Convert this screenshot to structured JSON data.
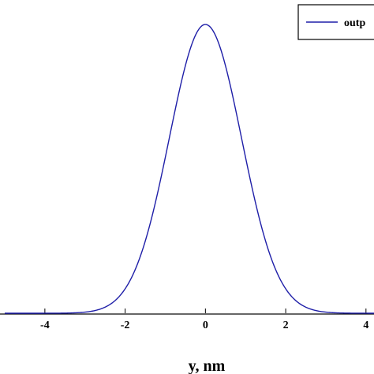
{
  "chart_data": {
    "type": "line",
    "title": "",
    "xlabel": "y, nm",
    "ylabel": "",
    "xlim": [
      -5,
      4.2
    ],
    "ylim": [
      0,
      1.05
    ],
    "x_ticks": [
      -4,
      -2,
      0,
      2,
      4
    ],
    "x_tick_labels": [
      "-4",
      "-2",
      "0",
      "2",
      "4"
    ],
    "grid": false,
    "legend": {
      "placement": "top-right",
      "entries": [
        "outp"
      ]
    },
    "series": [
      {
        "name": "outp",
        "color": "#1f1fa8",
        "x": [
          -5,
          -4,
          -3.5,
          -3,
          -2.75,
          -2.5,
          -2.25,
          -2,
          -1.75,
          -1.5,
          -1.25,
          -1,
          -0.75,
          -0.5,
          -0.25,
          0,
          0.25,
          0.5,
          0.75,
          1,
          1.25,
          1.5,
          1.75,
          2,
          2.25,
          2.5,
          2.75,
          3,
          3.5,
          4,
          4.2
        ],
        "y": [
          0,
          0.0001,
          0.0007,
          0.0039,
          0.0087,
          0.0183,
          0.0362,
          0.0668,
          0.1164,
          0.1914,
          0.2967,
          0.4346,
          0.6012,
          0.7844,
          0.9364,
          1.0,
          0.9364,
          0.7844,
          0.6012,
          0.4346,
          0.2967,
          0.1914,
          0.1164,
          0.0668,
          0.0362,
          0.0183,
          0.0087,
          0.0039,
          0.0007,
          0.0001,
          0
        ]
      }
    ]
  }
}
